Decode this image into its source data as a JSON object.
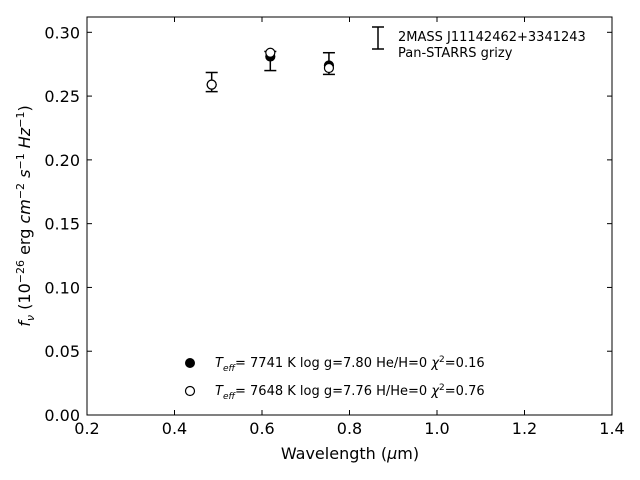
{
  "chart_data": {
    "type": "scatter",
    "xlabel": "Wavelength (μm)",
    "ylabel": "f_ν (10^-26 erg cm^-2 s^-1 Hz^-1)",
    "xlim": [
      0.2,
      1.4
    ],
    "ylim": [
      0.0,
      0.312
    ],
    "x_ticks": [
      "0.2",
      "0.4",
      "0.6",
      "0.8",
      "1.0",
      "1.2",
      "1.4"
    ],
    "y_ticks": [
      "0.00",
      "0.05",
      "0.10",
      "0.15",
      "0.20",
      "0.25",
      "0.30"
    ],
    "grid": false,
    "observed": {
      "name": "2MASS J11142462+3341243",
      "subtitle": "Pan-STARRS grizy",
      "points": [
        {
          "x": 0.485,
          "y": 0.261,
          "err": 0.0075
        },
        {
          "x": 0.619,
          "y": 0.2775,
          "err": 0.0075
        },
        {
          "x": 0.753,
          "y": 0.2755,
          "err": 0.0085
        }
      ]
    },
    "series": [
      {
        "name": "T_eff = 7741 K  log g=7.80  He/H=0  χ²=0.16",
        "marker": "filled-circle",
        "x": [
          0.485,
          0.619,
          0.753
        ],
        "y": [
          0.259,
          0.281,
          0.274
        ]
      },
      {
        "name": "T_eff = 7648 K  log g=7.76  H/He=0  χ²=0.76",
        "marker": "open-circle",
        "x": [
          0.485,
          0.619,
          0.753
        ],
        "y": [
          0.259,
          0.284,
          0.272
        ]
      }
    ],
    "legend": {
      "placement": "bottom-center",
      "entries": [
        {
          "teff": "7741 K",
          "logg": "log g=7.80",
          "comp": "He/H=0",
          "chi2": "=0.16"
        },
        {
          "teff": "7648 K",
          "logg": "log g=7.76",
          "comp": "H/He=0",
          "chi2": "=0.76"
        }
      ]
    }
  }
}
